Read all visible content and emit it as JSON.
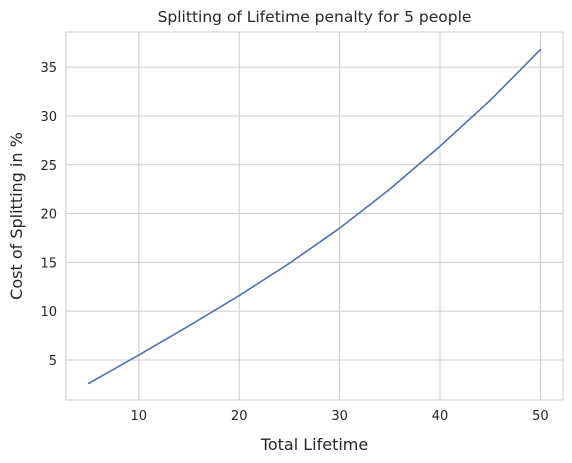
{
  "chart_data": {
    "type": "line",
    "title": "Splitting of Lifetime penalty for 5 people",
    "xlabel": "Total Lifetime",
    "ylabel": "Cost of Splitting in %",
    "xlim": [
      2.75,
      52.25
    ],
    "ylim": [
      0.9,
      38.6
    ],
    "xticks": [
      10,
      20,
      30,
      40,
      50
    ],
    "yticks": [
      5,
      10,
      15,
      20,
      25,
      30,
      35
    ],
    "grid": true,
    "line_color": "#4c72b0",
    "series": [
      {
        "x": [
          5,
          10,
          15,
          20,
          25,
          30,
          35,
          40,
          45,
          50
        ],
        "values": [
          2.6,
          5.5,
          8.5,
          11.6,
          14.9,
          18.5,
          22.5,
          26.9,
          31.6,
          36.8
        ]
      }
    ]
  }
}
